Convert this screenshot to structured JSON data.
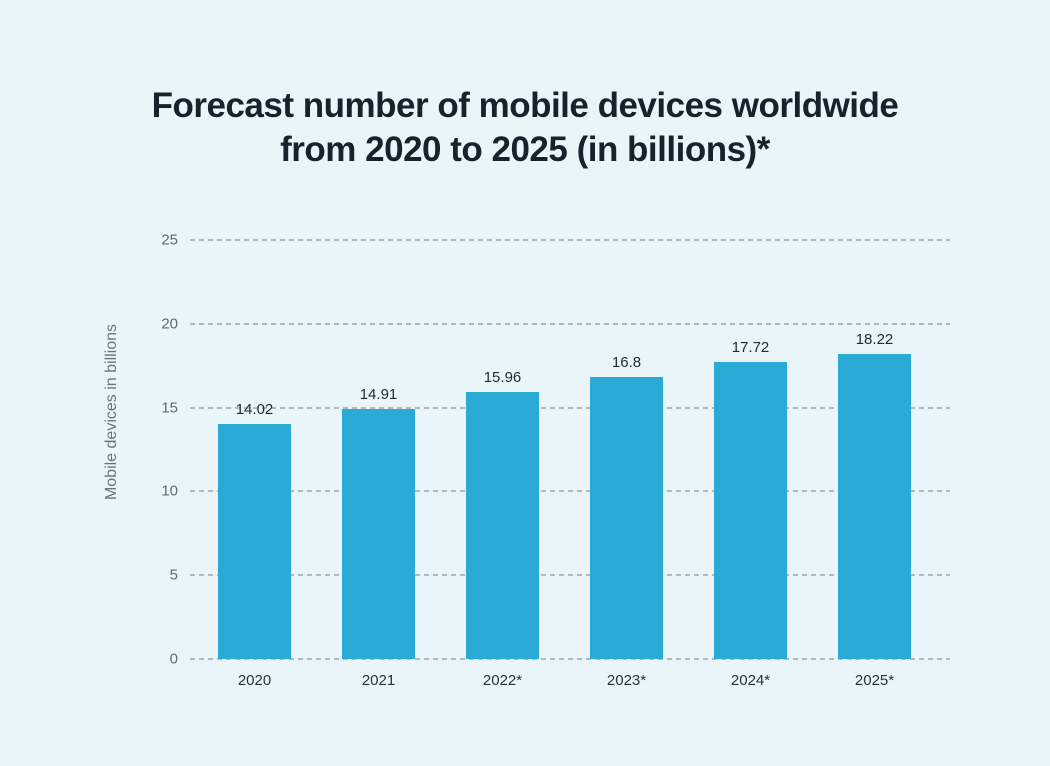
{
  "title_lines": [
    "Forecast number of mobile devices worldwide",
    "from 2020 to 2025 (in billions)*"
  ],
  "chart_data": {
    "type": "bar",
    "title": "Forecast number of mobile devices worldwide from 2020 to 2025 (in billions)*",
    "categories": [
      "2020",
      "2021",
      "2022*",
      "2023*",
      "2024*",
      "2025*"
    ],
    "values": [
      14.02,
      14.91,
      15.96,
      16.8,
      17.72,
      18.22
    ],
    "value_labels": [
      "14.02",
      "14.91",
      "15.96",
      "16.8",
      "17.72",
      "18.22"
    ],
    "xlabel": "",
    "ylabel": "Mobile devices in billions",
    "ylim": [
      0,
      25
    ],
    "yticks": [
      0,
      5,
      10,
      15,
      20,
      25
    ],
    "grid": "horizontal-dashed",
    "legend": "none",
    "colors": {
      "bar": "#2aabd6",
      "background": "#e9f5f9",
      "gridline": "#9aa6ac",
      "title_text": "#16232c",
      "tick_text": "#5e6c74",
      "value_text": "#1d2b33",
      "axis_title_text": "#67757e"
    }
  }
}
